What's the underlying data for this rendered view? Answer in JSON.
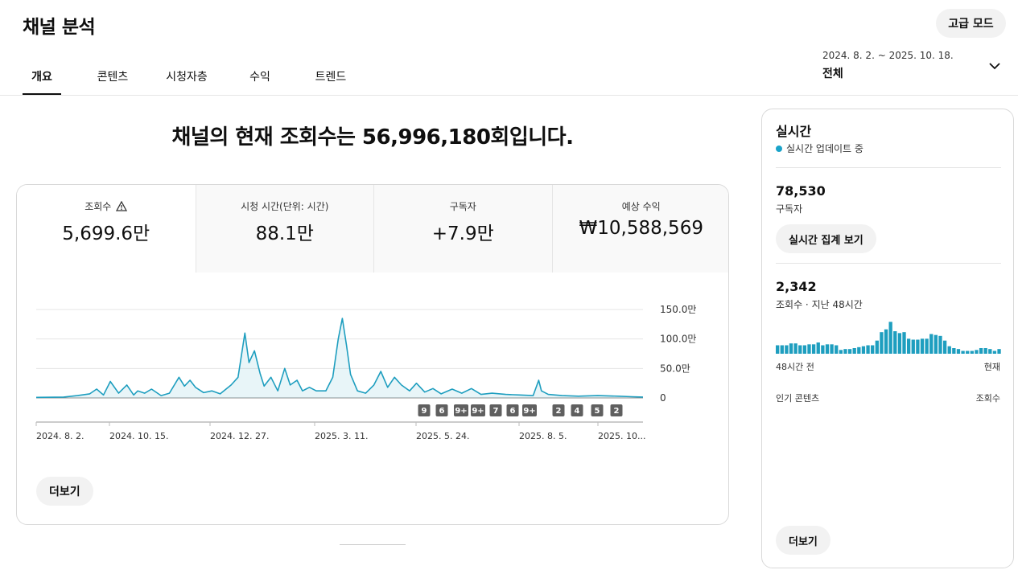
{
  "header": {
    "title": "채널 분석",
    "advanced_mode": "고급 모드"
  },
  "tabs": [
    {
      "label": "개요",
      "active": true
    },
    {
      "label": "콘텐츠",
      "active": false
    },
    {
      "label": "시청자층",
      "active": false
    },
    {
      "label": "수익",
      "active": false
    },
    {
      "label": "트렌드",
      "active": false
    }
  ],
  "date_picker": {
    "range": "2024. 8. 2. ~ 2025. 10. 18.",
    "value": "전체",
    "icon": "chevron-down-icon"
  },
  "headline": "채널의 현재 조회수는 56,996,180회입니다.",
  "metrics": [
    {
      "label": "조회수",
      "value": "5,699.6만",
      "warning_icon": true
    },
    {
      "label": "시청 시간(단위: 시간)",
      "value": "88.1만"
    },
    {
      "label": "구독자",
      "value": "+7.9만"
    },
    {
      "label": "예상 수익",
      "value": "₩10,588,569"
    }
  ],
  "chart_data": {
    "type": "area",
    "y_tick_labels": [
      "150.0만",
      "100.0만",
      "50.0만",
      "0"
    ],
    "y_ticks": [
      1500000,
      1000000,
      500000,
      0
    ],
    "ylim": [
      0,
      1500000
    ],
    "x_tick_labels": [
      "2024. 8. 2.",
      "2024. 10. 15.",
      "2024. 12. 27.",
      "2025. 3. 11.",
      "2025. 5. 24.",
      "2025. 8. 5.",
      "2025. 10..."
    ],
    "x_range": [
      "2024-08-02",
      "2025-10-18"
    ],
    "grid": true,
    "color": "#1e9ebf",
    "series": [
      {
        "x": [
          "2024-08-02",
          "2024-08-22",
          "2024-09-01",
          "2024-09-10",
          "2024-09-15",
          "2024-09-20",
          "2024-09-25",
          "2024-10-01",
          "2024-10-07",
          "2024-10-12",
          "2024-10-15",
          "2024-10-20",
          "2024-10-25",
          "2024-11-01",
          "2024-11-07",
          "2024-11-14",
          "2024-11-18",
          "2024-11-22",
          "2024-11-26",
          "2024-12-02",
          "2024-12-08",
          "2024-12-14",
          "2024-12-22",
          "2024-12-27",
          "2025-01-01",
          "2025-01-04",
          "2025-01-08",
          "2025-01-12",
          "2025-01-15",
          "2025-01-20",
          "2025-01-25",
          "2025-01-30",
          "2025-02-03",
          "2025-02-08",
          "2025-02-12",
          "2025-02-17",
          "2025-02-22",
          "2025-03-01",
          "2025-03-06",
          "2025-03-10",
          "2025-03-13",
          "2025-03-16",
          "2025-03-19",
          "2025-03-24",
          "2025-03-30",
          "2025-04-05",
          "2025-04-10",
          "2025-04-15",
          "2025-04-20",
          "2025-04-25",
          "2025-05-01",
          "2025-05-06",
          "2025-05-12",
          "2025-05-18",
          "2025-05-24",
          "2025-06-01",
          "2025-06-08",
          "2025-06-15",
          "2025-06-22",
          "2025-06-30",
          "2025-07-10",
          "2025-07-20",
          "2025-07-30",
          "2025-08-03",
          "2025-08-05",
          "2025-08-10",
          "2025-08-20",
          "2025-09-01",
          "2025-09-15",
          "2025-09-30",
          "2025-10-10",
          "2025-10-18"
        ],
        "y": [
          10000,
          15000,
          40000,
          70000,
          150000,
          50000,
          280000,
          80000,
          220000,
          50000,
          120000,
          80000,
          150000,
          40000,
          80000,
          350000,
          200000,
          300000,
          180000,
          90000,
          120000,
          70000,
          220000,
          350000,
          1100000,
          600000,
          800000,
          420000,
          200000,
          350000,
          120000,
          500000,
          220000,
          300000,
          120000,
          180000,
          120000,
          120000,
          350000,
          1000000,
          1350000,
          900000,
          400000,
          120000,
          80000,
          220000,
          450000,
          180000,
          350000,
          220000,
          120000,
          250000,
          100000,
          160000,
          70000,
          150000,
          80000,
          160000,
          60000,
          80000,
          60000,
          50000,
          40000,
          300000,
          120000,
          60000,
          40000,
          30000,
          40000,
          30000,
          20000,
          15000
        ]
      }
    ],
    "badges": [
      "9",
      "6",
      "9+",
      "9+",
      "7",
      "6",
      "9+",
      "2",
      "4",
      "5",
      "2"
    ]
  },
  "more_label": "더보기",
  "realtime": {
    "title": "실시간",
    "status": "실시간 업데이트 중",
    "subscribers": "78,530",
    "subscribers_label": "구독자",
    "count_button": "실시간 집계 보기",
    "views": "2,342",
    "views_label": "조회수 · 지난 48시간",
    "bars_label_left": "48시간 전",
    "bars_label_right": "현재",
    "hourly_bars": [
      9,
      9,
      9,
      11,
      11,
      9,
      9,
      10,
      10,
      12,
      9,
      10,
      10,
      9,
      4,
      5,
      5,
      6,
      7,
      8,
      9,
      9,
      14,
      23,
      26,
      34,
      24,
      22,
      23,
      16,
      15,
      15,
      16,
      16,
      21,
      20,
      19,
      14,
      8,
      6,
      5,
      3,
      3,
      3,
      4,
      6,
      6,
      5,
      3,
      5
    ],
    "bars_color": "#1e9ebf",
    "popular_label": "인기 콘텐츠",
    "popular_metric": "조회수",
    "more_label": "더보기"
  }
}
